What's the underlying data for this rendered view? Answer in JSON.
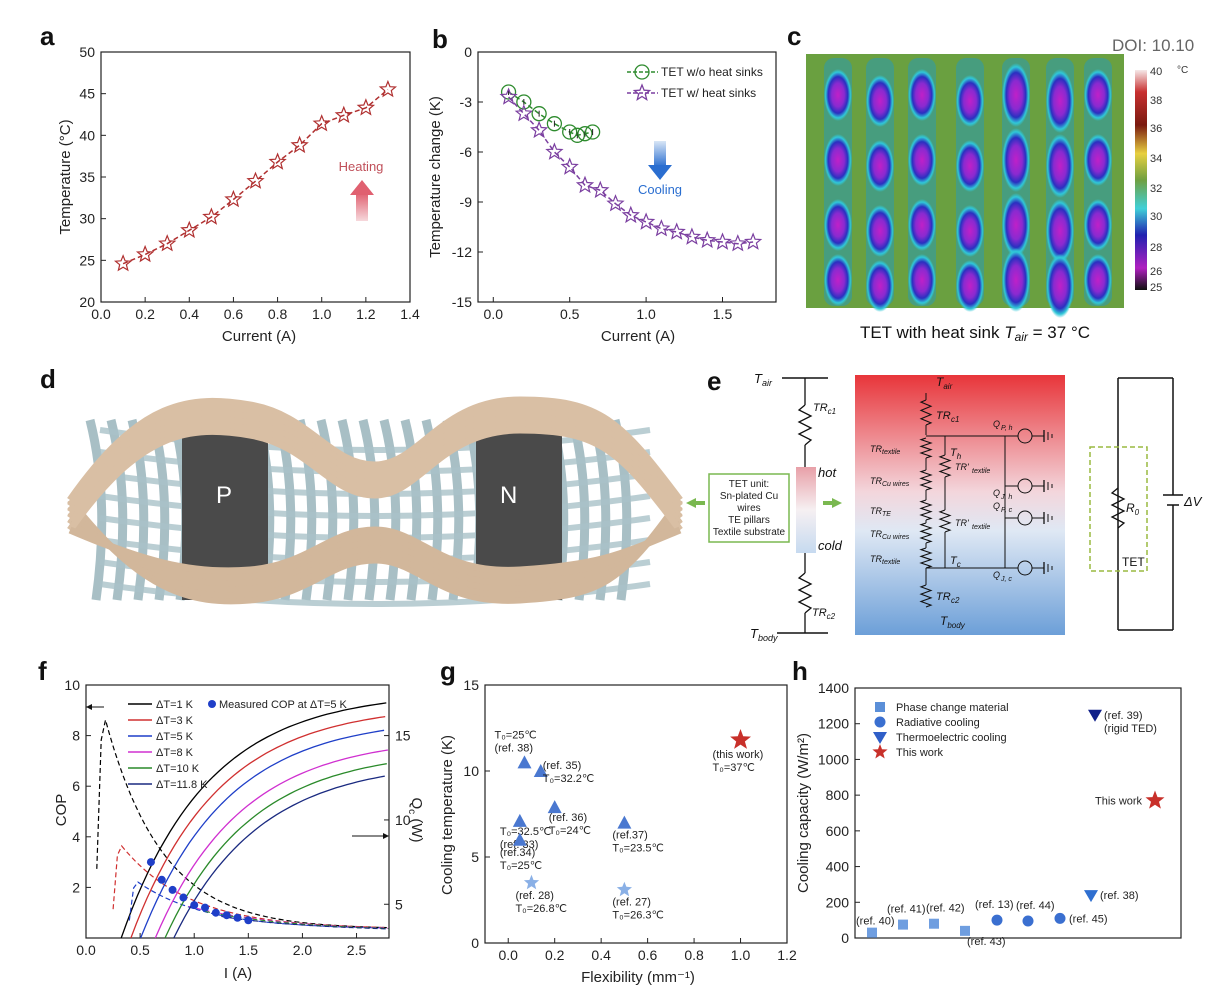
{
  "panels": {
    "a": "a",
    "b": "b",
    "c": "c",
    "d": "d",
    "e": "e",
    "f": "f",
    "g": "g",
    "h": "h"
  },
  "doi": "DOI: 10.10",
  "chart_data": [
    {
      "id": "a",
      "type": "line",
      "xlabel": "Current (A)",
      "ylabel": "Temperature (°C)",
      "xlim": [
        0.0,
        1.4
      ],
      "ylim": [
        20,
        50
      ],
      "xticks": [
        "0.0",
        "0.2",
        "0.4",
        "0.6",
        "0.8",
        "1.0",
        "1.2",
        "1.4"
      ],
      "yticks": [
        "20",
        "25",
        "30",
        "35",
        "40",
        "45",
        "50"
      ],
      "annotation": "Heating",
      "color": "#b03030",
      "x": [
        0.1,
        0.2,
        0.3,
        0.4,
        0.5,
        0.6,
        0.7,
        0.8,
        0.9,
        1.0,
        1.1,
        1.2,
        1.3
      ],
      "y": [
        24.6,
        25.7,
        27.0,
        28.6,
        30.2,
        32.3,
        34.5,
        36.8,
        38.8,
        41.4,
        42.4,
        43.3,
        45.5
      ]
    },
    {
      "id": "b",
      "type": "line",
      "xlabel": "Current (A)",
      "ylabel": "Temperature change (K)",
      "xlim": [
        -0.1,
        1.85
      ],
      "ylim": [
        -15,
        0
      ],
      "xticks": [
        "0.0",
        "0.5",
        "1.0",
        "1.5"
      ],
      "yticks": [
        "0",
        "-3",
        "-6",
        "-9",
        "-12",
        "-15"
      ],
      "annotation": "Cooling",
      "series": [
        {
          "name": "TET w/o heat sinks",
          "color": "#2e8b2e",
          "x": [
            0.1,
            0.2,
            0.3,
            0.4,
            0.5,
            0.55,
            0.6,
            0.65
          ],
          "y": [
            -2.4,
            -3.0,
            -3.7,
            -4.3,
            -4.8,
            -5.0,
            -4.9,
            -4.8
          ]
        },
        {
          "name": "TET w/ heat sinks",
          "color": "#7b3fa0",
          "x": [
            0.1,
            0.2,
            0.3,
            0.4,
            0.5,
            0.6,
            0.7,
            0.8,
            0.9,
            1.0,
            1.1,
            1.2,
            1.3,
            1.4,
            1.5,
            1.6,
            1.7
          ],
          "y": [
            -2.7,
            -3.7,
            -4.7,
            -6.0,
            -6.9,
            -8.0,
            -8.3,
            -9.1,
            -9.8,
            -10.2,
            -10.6,
            -10.8,
            -11.1,
            -11.3,
            -11.4,
            -11.5,
            -11.4
          ]
        }
      ]
    },
    {
      "id": "c",
      "type": "heatmap",
      "caption_main": "TET with heat sink ",
      "caption_var": "T",
      "caption_sub": "air",
      "caption_rest": " = 37 °C",
      "colorbar_ticks": [
        "40",
        "38",
        "36",
        "34",
        "32",
        "30",
        "28",
        "26",
        "25"
      ],
      "colorbar_unit": "°C"
    },
    {
      "id": "f",
      "type": "line",
      "xlabel": "I (A)",
      "ylabel": "COP",
      "ylabel_right": "Q_c (W)",
      "xlim": [
        0.0,
        2.8
      ],
      "ylim": [
        0,
        10
      ],
      "ylim_right": [
        3,
        18
      ],
      "xticks": [
        "0.0",
        "0.5",
        "1.0",
        "1.5",
        "2.0",
        "2.5"
      ],
      "yticks": [
        "2",
        "4",
        "6",
        "8",
        "10"
      ],
      "yticks_right": [
        "5",
        "10",
        "15"
      ],
      "legend": [
        {
          "label": "ΔT=1 K",
          "color": "#000000"
        },
        {
          "label": "ΔT=3 K",
          "color": "#d03030"
        },
        {
          "label": "ΔT=5 K",
          "color": "#1f3fc8"
        },
        {
          "label": "ΔT=8 K",
          "color": "#d030d0"
        },
        {
          "label": "ΔT=10 K",
          "color": "#2a8a2a"
        },
        {
          "label": "ΔT=11.8 K",
          "color": "#1a2a80"
        }
      ],
      "measured_label": "Measured COP at ΔT=5 K",
      "measured": {
        "x": [
          0.6,
          0.7,
          0.8,
          0.9,
          1.0,
          1.1,
          1.2,
          1.3,
          1.4,
          1.5
        ],
        "y": [
          3.0,
          2.3,
          1.9,
          1.6,
          1.3,
          1.2,
          1.0,
          0.9,
          0.8,
          0.7
        ]
      }
    },
    {
      "id": "g",
      "type": "scatter",
      "xlabel": "Flexibility (mm⁻¹)",
      "ylabel": "Cooling temperature (K)",
      "xlim": [
        -0.1,
        1.2
      ],
      "ylim": [
        0,
        15
      ],
      "xticks": [
        "0.0",
        "0.2",
        "0.4",
        "0.6",
        "0.8",
        "1.0",
        "1.2"
      ],
      "yticks": [
        "0",
        "5",
        "10",
        "15"
      ],
      "points": [
        {
          "x": 0.07,
          "y": 10.5,
          "marker": "triangle",
          "label": "T₀=25℃\n(ref. 38)"
        },
        {
          "x": 0.14,
          "y": 10.0,
          "marker": "triangle",
          "label": "(ref. 35)\nT₀=32.2℃"
        },
        {
          "x": 0.05,
          "y": 7.1,
          "marker": "triangle",
          "label": "T₀=32.5℃\n(ref. 33)"
        },
        {
          "x": 0.2,
          "y": 7.9,
          "marker": "triangle",
          "label": "(ref. 36)\nT₀=24℃"
        },
        {
          "x": 0.05,
          "y": 6.0,
          "marker": "triangle",
          "label": "(ref.34)\nT₀=25℃"
        },
        {
          "x": 0.5,
          "y": 7.0,
          "marker": "triangle",
          "label": "(ref.37)\nT₀=23.5℃"
        },
        {
          "x": 0.1,
          "y": 3.5,
          "marker": "star",
          "label": "(ref. 28)\nT₀=26.8℃"
        },
        {
          "x": 0.5,
          "y": 3.1,
          "marker": "star",
          "label": "(ref. 27)\nT₀=26.3℃"
        },
        {
          "x": 1.0,
          "y": 11.8,
          "marker": "star-red",
          "label": "(this work)\nT₀=37℃"
        }
      ]
    },
    {
      "id": "h",
      "type": "scatter",
      "ylabel": "Cooling capacity (W/m²)",
      "ylim": [
        0,
        1400
      ],
      "yticks": [
        "0",
        "200",
        "400",
        "600",
        "800",
        "1000",
        "1200",
        "1400"
      ],
      "legend": [
        {
          "label": "Phase change material",
          "marker": "square",
          "color": "#5b8fd8"
        },
        {
          "label": "Radiative cooling",
          "marker": "circle",
          "color": "#3a6fd0"
        },
        {
          "label": "Thermoelectric cooling",
          "marker": "triangle-down",
          "color": "#2f5fc8"
        },
        {
          "label": "This work",
          "marker": "star",
          "color": "#c8302a"
        }
      ],
      "points": [
        {
          "label": "(ref. 40)",
          "y": 30,
          "marker": "square"
        },
        {
          "label": "(ref. 41)",
          "y": 75,
          "marker": "square"
        },
        {
          "label": "(ref. 42)",
          "y": 80,
          "marker": "square"
        },
        {
          "label": "(ref. 43)",
          "y": 40,
          "marker": "square"
        },
        {
          "label": "(ref. 13)",
          "y": 100,
          "marker": "circle"
        },
        {
          "label": "(ref. 44)",
          "y": 95,
          "marker": "circle"
        },
        {
          "label": "(ref. 45)",
          "y": 110,
          "marker": "circle"
        },
        {
          "label": "(ref. 38)",
          "y": 240,
          "marker": "triangle-down"
        },
        {
          "label": "(ref. 39)\n(rigid TED)",
          "y": 1250,
          "marker": "triangle-down-dark"
        },
        {
          "label": "This work",
          "y": 770,
          "marker": "star"
        }
      ]
    }
  ],
  "diagram_d": {
    "p_label": "P",
    "n_label": "N"
  },
  "diagram_e": {
    "t_air": "T",
    "t_air_sub": "air",
    "t_body": "T",
    "t_body_sub": "body",
    "tr_c1": "TR",
    "tr_c1_sub": "c1",
    "tr_c2": "TR",
    "tr_c2_sub": "c2",
    "hot": "hot",
    "cold": "cold",
    "unit_box": [
      "TET unit:",
      "Sn-plated Cu",
      "wires",
      "TE pillars",
      "Textile substrate"
    ],
    "resistors_left": [
      "TR_textile",
      "TR_Cu wires",
      "TR_TE",
      "TR_Cu wires",
      "TR_textile"
    ],
    "resistors_mid": [
      "TR'_textile",
      "TR'_textile"
    ],
    "th": "T",
    "th_sub": "h",
    "tc": "T",
    "tc_sub": "c",
    "sources": [
      "Q_P, h",
      "Q_J, h",
      "Q_P, c",
      "Q_J, c"
    ],
    "r0": "R",
    "r0_sub": "0",
    "dv": "ΔV",
    "tet": "TET"
  }
}
